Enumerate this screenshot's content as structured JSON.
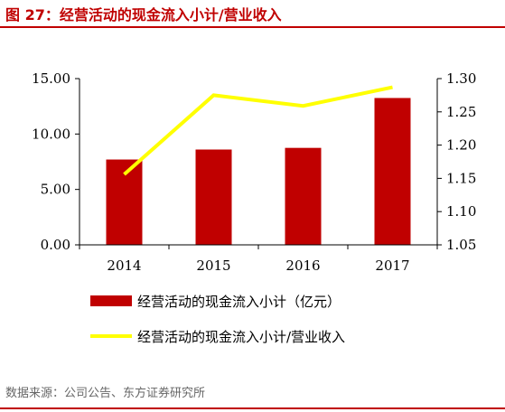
{
  "header": {
    "title": "图 27：经营活动的现金流入小计/营业收入"
  },
  "footer": {
    "source": "数据来源：公司公告、东方证券研究所"
  },
  "colors": {
    "accent": "#c00000",
    "bar": "#c00000",
    "line": "#ffff00"
  },
  "chart_data": {
    "type": "bar",
    "categories": [
      "2014",
      "2015",
      "2016",
      "2017"
    ],
    "series": [
      {
        "name": "经营活动的现金流入小计（亿元）",
        "type": "bar",
        "axis": "left",
        "values": [
          7.7,
          8.6,
          8.75,
          13.25
        ]
      },
      {
        "name": "经营活动的现金流入小计/营业收入",
        "type": "line",
        "axis": "right",
        "values": [
          1.156,
          1.275,
          1.259,
          1.287
        ]
      }
    ],
    "y_left": {
      "min": 0,
      "max": 15,
      "ticks": [
        "0.00",
        "5.00",
        "10.00",
        "15.00"
      ]
    },
    "y_right": {
      "min": 1.05,
      "max": 1.3,
      "ticks": [
        "1.05",
        "1.10",
        "1.15",
        "1.20",
        "1.25",
        "1.30"
      ]
    },
    "grid": false,
    "legend_position": "bottom"
  }
}
